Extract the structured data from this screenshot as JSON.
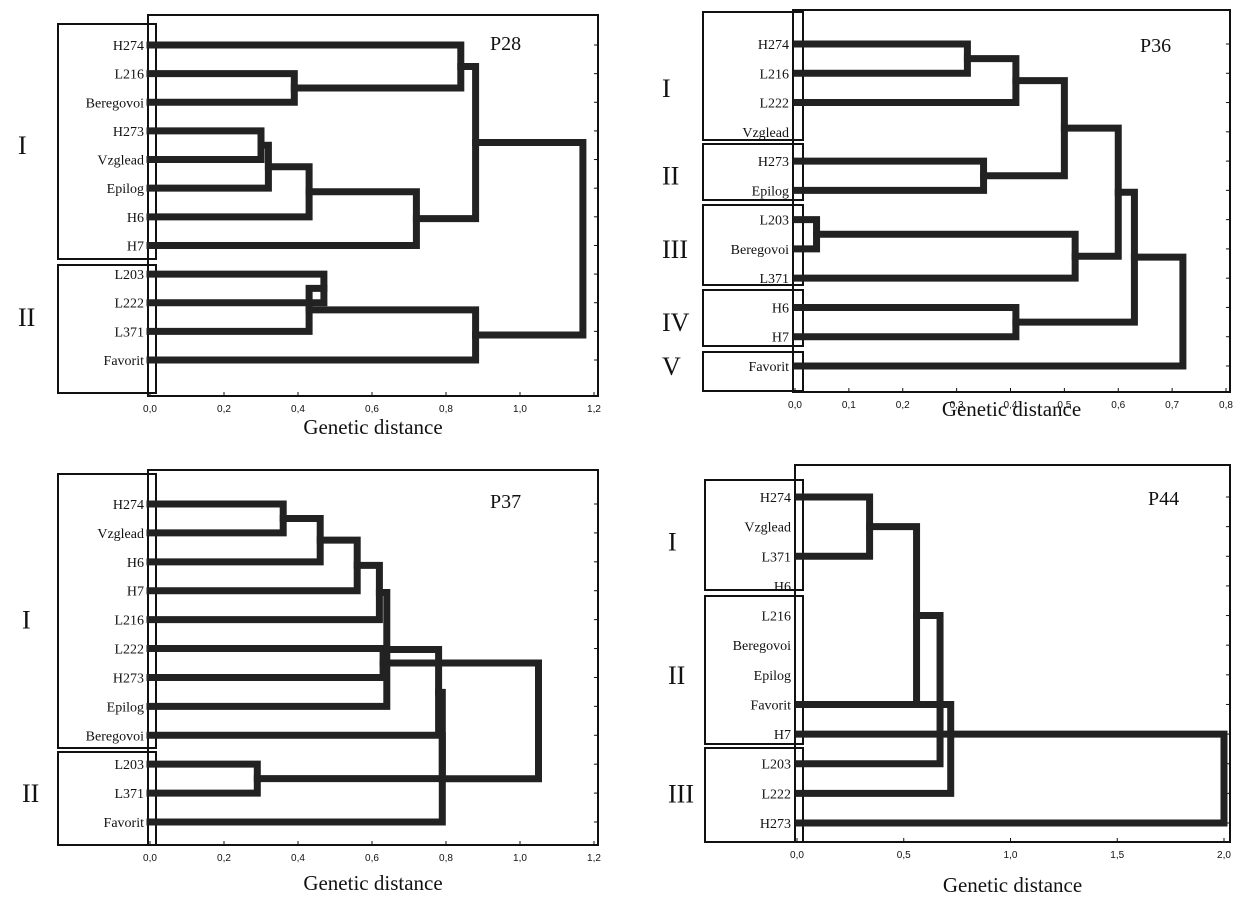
{
  "chart_data": [
    {
      "type": "dendrogram",
      "title": "P28",
      "xlabel": "Genetic distance",
      "xlim": [
        0,
        1.2
      ],
      "ticks": [
        "0,0",
        "0,2",
        "0,4",
        "0,6",
        "0,8",
        "1,0",
        "1,2"
      ],
      "tick_values": [
        0,
        0.2,
        0.4,
        0.6,
        0.8,
        1.0,
        1.2
      ],
      "leaves": [
        "H274",
        "L216",
        "Beregovoi",
        "H273",
        "Vzglead",
        "Epilog",
        "H6",
        "H7",
        "L203",
        "L222",
        "L371",
        "Favorit"
      ],
      "clusters": [
        {
          "label": "I",
          "from": 0,
          "to": 7
        },
        {
          "label": "II",
          "from": 8,
          "to": 11
        }
      ],
      "merges": [
        {
          "a": 3,
          "b": 4,
          "height": 0.3
        },
        {
          "a": "m0",
          "b": 5,
          "height": 0.32
        },
        {
          "a": 1,
          "b": 2,
          "height": 0.39
        },
        {
          "a": 8,
          "b": 9,
          "height": 0.47
        },
        {
          "a": "m3",
          "b": 10,
          "height": 0.43
        },
        {
          "a": "m1",
          "b": 6,
          "height": 0.43
        },
        {
          "a": "m5",
          "b": 7,
          "height": 0.72
        },
        {
          "a": "m2",
          "b": 0,
          "height": 0.84
        },
        {
          "a": "m7",
          "b": "m6",
          "height": 0.88
        },
        {
          "a": "m4",
          "b": 11,
          "height": 0.88
        },
        {
          "a": "m8",
          "b": "m9",
          "height": 1.17
        }
      ]
    },
    {
      "type": "dendrogram",
      "title": "P36",
      "xlabel": "Genetic distance",
      "xlim": [
        0,
        0.8
      ],
      "ticks": [
        "0,0",
        "0,1",
        "0,2",
        "0,3",
        "0,4",
        "0,5",
        "0,6",
        "0,7",
        "0,8"
      ],
      "tick_values": [
        0,
        0.1,
        0.2,
        0.3,
        0.4,
        0.5,
        0.6,
        0.7,
        0.8
      ],
      "leaves": [
        "H274",
        "L216",
        "L222",
        "Vzglead",
        "H273",
        "Epilog",
        "L203",
        "Beregovoi",
        "L371",
        "H6",
        "H7",
        "Favorit"
      ],
      "clusters": [
        {
          "label": "I",
          "from": 0,
          "to": 3
        },
        {
          "label": "II",
          "from": 4,
          "to": 5
        },
        {
          "label": "III",
          "from": 6,
          "to": 8
        },
        {
          "label": "IV",
          "from": 9,
          "to": 10
        },
        {
          "label": "V",
          "from": 11,
          "to": 11
        }
      ],
      "merges": [
        {
          "a": 0,
          "b": 1,
          "height": 0.32
        },
        {
          "a": 6,
          "b": 7,
          "height": 0.04
        },
        {
          "a": "m0",
          "b": 2,
          "height": 0.41
        },
        {
          "a": 4,
          "b": 5,
          "height": 0.35
        },
        {
          "a": "m2",
          "b": "m3",
          "height": 0.5
        },
        {
          "a": "m1",
          "b": 8,
          "height": 0.52
        },
        {
          "a": 9,
          "b": 10,
          "height": 0.41
        },
        {
          "a": "m5",
          "b": "m4",
          "height": 0.6
        },
        {
          "a": "m6",
          "b": "m7",
          "height": 0.63
        },
        {
          "a": "m8",
          "b": 11,
          "height": 0.72
        }
      ]
    },
    {
      "type": "dendrogram",
      "title": "P37",
      "xlabel": "Genetic distance",
      "xlim": [
        0,
        1.2
      ],
      "ticks": [
        "0,0",
        "0,2",
        "0,4",
        "0,6",
        "0,8",
        "1,0",
        "1,2"
      ],
      "tick_values": [
        0,
        0.2,
        0.4,
        0.6,
        0.8,
        1.0,
        1.2
      ],
      "leaves": [
        "H274",
        "Vzglead",
        "H6",
        "H7",
        "L216",
        "L222",
        "H273",
        "Epilog",
        "Beregovoi",
        "L203",
        "L371",
        "Favorit"
      ],
      "clusters": [
        {
          "label": "I",
          "from": 0,
          "to": 8
        },
        {
          "label": "II",
          "from": 9,
          "to": 11
        }
      ],
      "merges": [
        {
          "a": 0,
          "b": 1,
          "height": 0.36
        },
        {
          "a": "m0",
          "b": 2,
          "height": 0.46
        },
        {
          "a": "m1",
          "b": 3,
          "height": 0.56
        },
        {
          "a": "m2",
          "b": 4,
          "height": 0.62
        },
        {
          "a": 5,
          "b": 6,
          "height": 0.63
        },
        {
          "a": "m3",
          "b": 7,
          "height": 0.64
        },
        {
          "a": "m5",
          "b": 8,
          "height": 0.78
        },
        {
          "a": 9,
          "b": 10,
          "height": 0.29
        },
        {
          "a": "m6",
          "b": "m7",
          "height": 0.79
        },
        {
          "a": "m8",
          "b": 11,
          "height": 0.79
        },
        {
          "a": "m9",
          "b": "m4",
          "height": 1.05
        }
      ]
    },
    {
      "type": "dendrogram",
      "title": "P44",
      "xlabel": "Genetic distance",
      "xlim": [
        0,
        2.0
      ],
      "ticks": [
        "0,0",
        "0,5",
        "1,0",
        "1,5",
        "2,0"
      ],
      "tick_values": [
        0,
        0.5,
        1.0,
        1.5,
        2.0
      ],
      "leaves": [
        "H274",
        "Vzglead",
        "L371",
        "H6",
        "L216",
        "Beregovoi",
        "Epilog",
        "Favorit",
        "H7",
        "L203",
        "L222",
        "H273"
      ],
      "clusters": [
        {
          "label": "I",
          "from": 0,
          "to": 3
        },
        {
          "label": "II",
          "from": 4,
          "to": 8
        },
        {
          "label": "III",
          "from": 9,
          "to": 11
        }
      ],
      "merges": [
        {
          "a": 0,
          "b": 2,
          "height": 0.34
        },
        {
          "a": "m0",
          "b": 7,
          "height": 0.56
        },
        {
          "a": "m1",
          "b": 9,
          "height": 0.67
        },
        {
          "a": 7,
          "b": 10,
          "height": 0.72
        },
        {
          "a": 8,
          "b": 11,
          "height": 2.0
        }
      ]
    }
  ]
}
